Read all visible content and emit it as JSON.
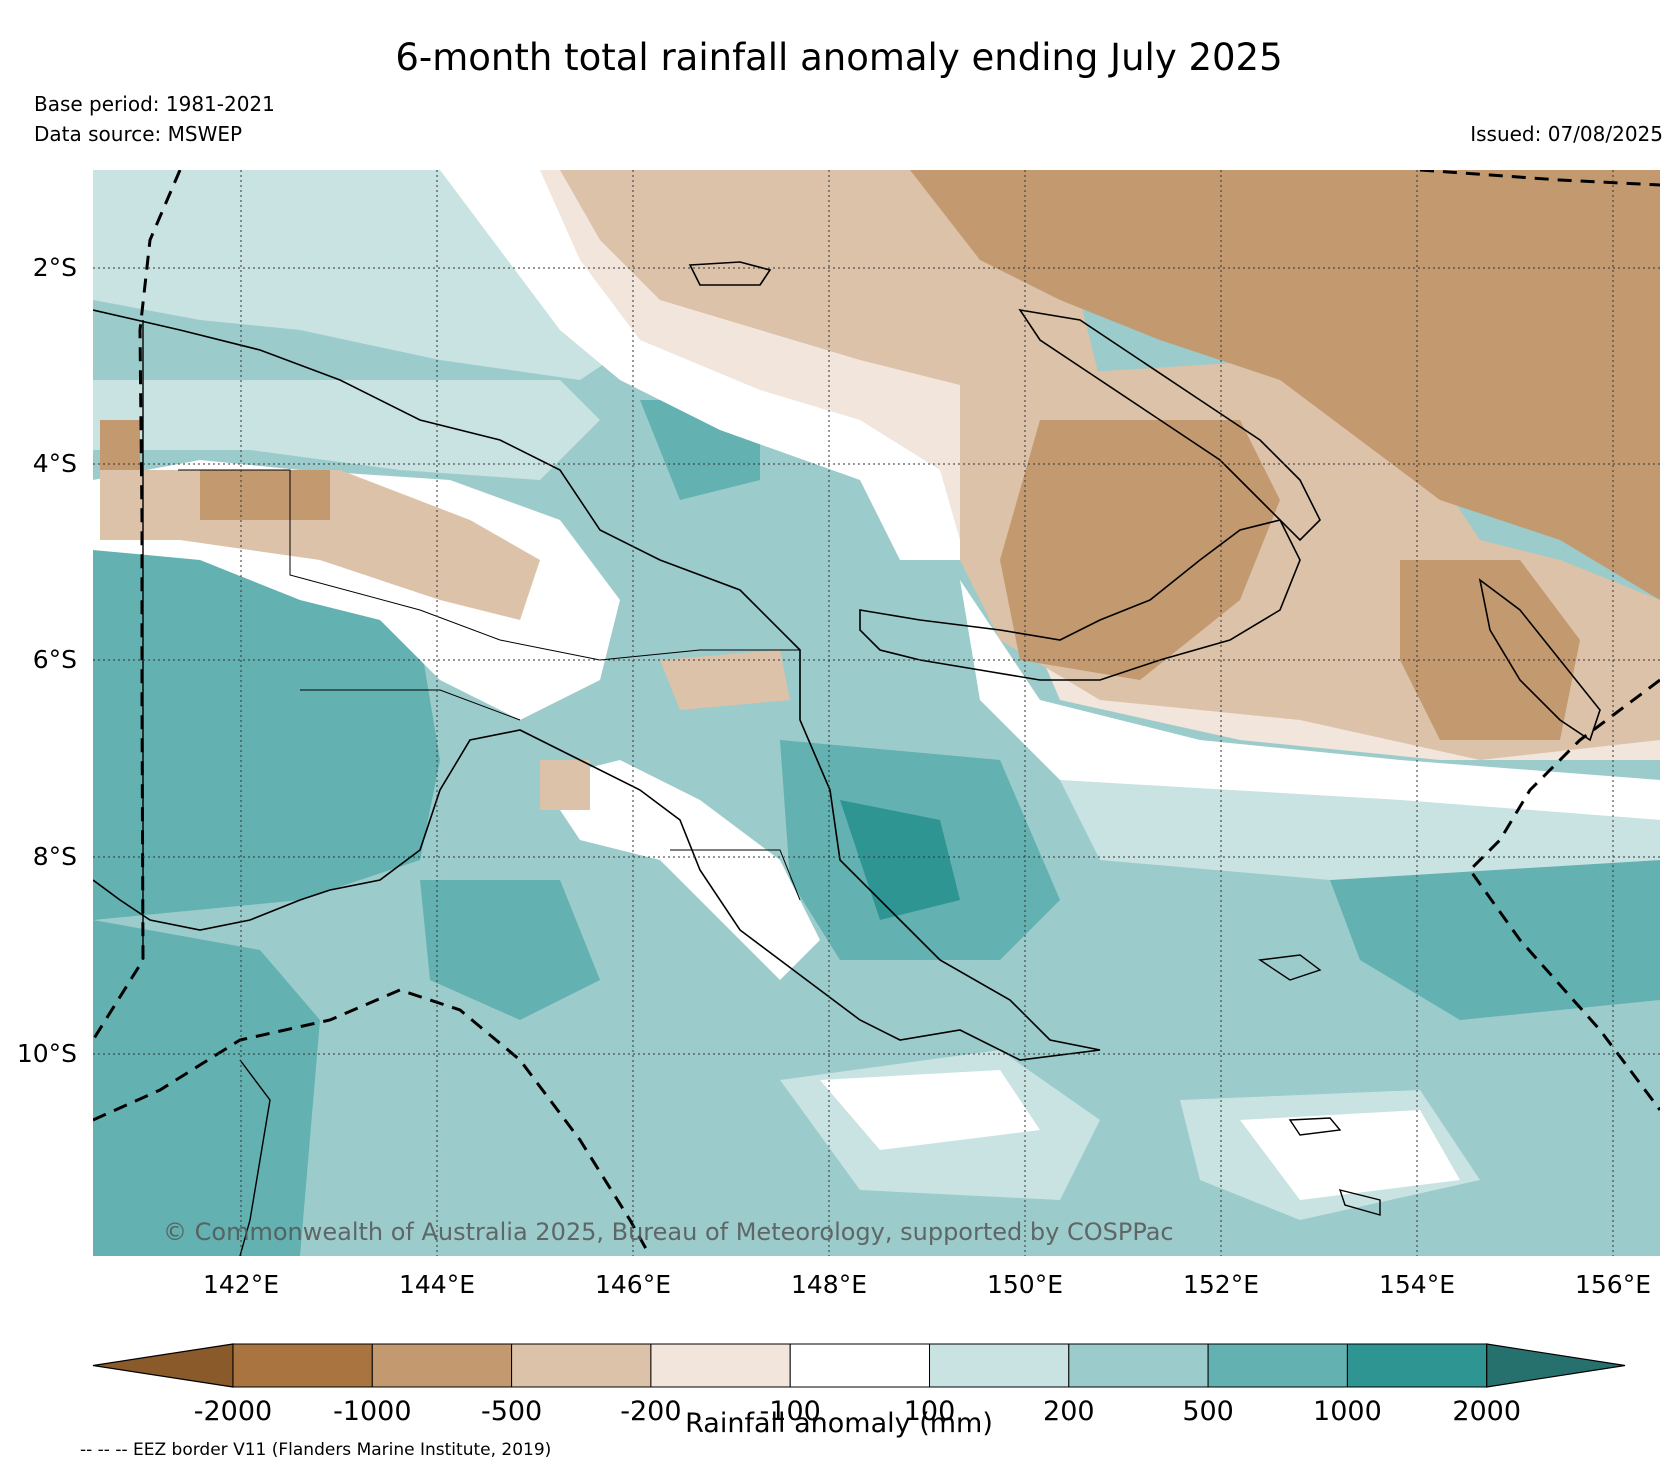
{
  "header": {
    "title": "6-month total rainfall anomaly ending July 2025",
    "base_period": "Base period: 1981-2021",
    "data_source": "Data source: MSWEP",
    "issued": "Issued: 07/08/2025"
  },
  "map": {
    "lat_labels": [
      "2°S",
      "4°S",
      "6°S",
      "8°S",
      "10°S"
    ],
    "lon_labels": [
      "142°E",
      "144°E",
      "146°E",
      "148°E",
      "150°E",
      "152°E",
      "154°E",
      "156°E"
    ],
    "copyright": "© Commonwealth of Australia 2025, Bureau of Meteorology, supported by COSPPac",
    "region": "Papua New Guinea",
    "lon_range": [
      140.5,
      156.5
    ],
    "lat_range": [
      -12.0,
      -1.0
    ]
  },
  "colorbar": {
    "label": "Rainfall anomaly (mm)",
    "ticks": [
      "-2000",
      "-1000",
      "-500",
      "-200",
      "-100",
      "100",
      "200",
      "500",
      "1000",
      "2000"
    ],
    "colors": [
      "#8b5a2b",
      "#a97440",
      "#c39a70",
      "#dcc2a8",
      "#f1e5dc",
      "#ffffff",
      "#c8e3e2",
      "#9ccbcb",
      "#63b1b1",
      "#2f9593",
      "#26706e"
    ]
  },
  "footnote": "-- -- -- EEZ border V11 (Flanders Marine Institute, 2019)"
}
